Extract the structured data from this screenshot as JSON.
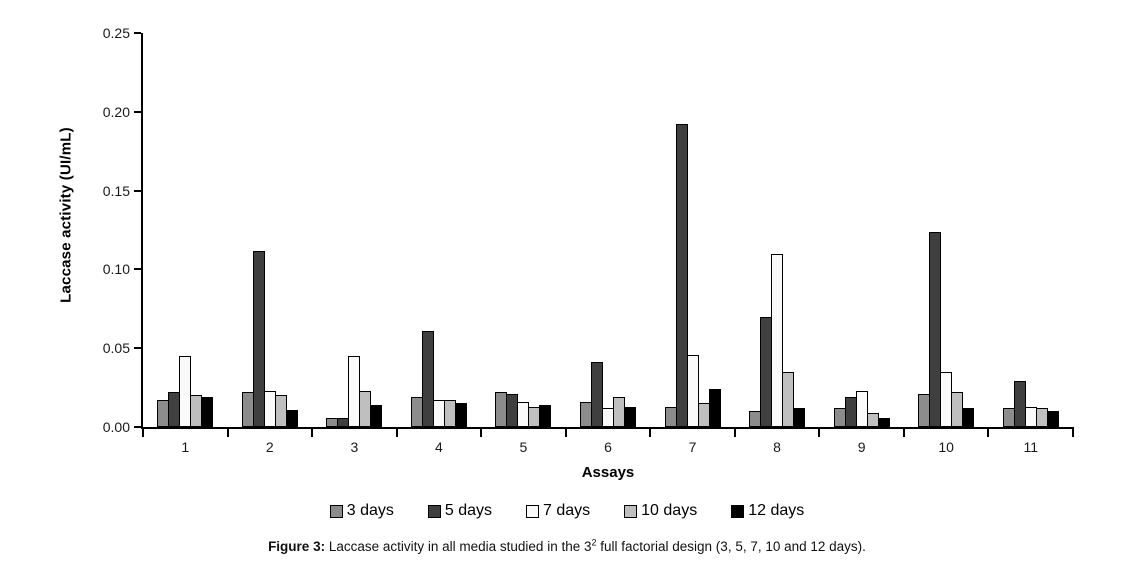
{
  "chart_data": {
    "type": "bar",
    "title": "",
    "xlabel": "Assays",
    "ylabel": "Laccase activity (UI/mL)",
    "ylim": [
      0,
      0.25
    ],
    "ytick_step": 0.05,
    "yticks": [
      "0.00",
      "0.05",
      "0.10",
      "0.15",
      "0.20",
      "0.25"
    ],
    "categories": [
      "1",
      "2",
      "3",
      "4",
      "5",
      "6",
      "7",
      "8",
      "9",
      "10",
      "11"
    ],
    "series": [
      {
        "name": "3 days",
        "color": "#8c8c8c",
        "values": [
          0.017,
          0.022,
          0.006,
          0.019,
          0.022,
          0.016,
          0.013,
          0.01,
          0.012,
          0.021,
          0.012
        ]
      },
      {
        "name": "5 days",
        "color": "#3f3f3f",
        "values": [
          0.022,
          0.112,
          0.006,
          0.061,
          0.021,
          0.041,
          0.192,
          0.07,
          0.019,
          0.124,
          0.029
        ]
      },
      {
        "name": "7 days",
        "color": "#fafafa",
        "values": [
          0.045,
          0.023,
          0.045,
          0.017,
          0.016,
          0.012,
          0.046,
          0.11,
          0.023,
          0.035,
          0.013
        ]
      },
      {
        "name": "10 days",
        "color": "#bfbfbf",
        "values": [
          0.02,
          0.02,
          0.023,
          0.017,
          0.013,
          0.019,
          0.015,
          0.035,
          0.009,
          0.022,
          0.012
        ]
      },
      {
        "name": "12 days",
        "color": "#000000",
        "values": [
          0.019,
          0.011,
          0.014,
          0.015,
          0.014,
          0.013,
          0.024,
          0.012,
          0.006,
          0.012,
          0.01
        ]
      }
    ],
    "legend_position": "bottom",
    "grid": false,
    "axis_color": "#000000"
  },
  "caption": {
    "label": "Figure 3:",
    "text_before_sup": " Laccase activity in all media studied in the 3",
    "sup": "2",
    "text_after_sup": " full factorial design (3, 5, 7, 10 and 12 days)."
  }
}
